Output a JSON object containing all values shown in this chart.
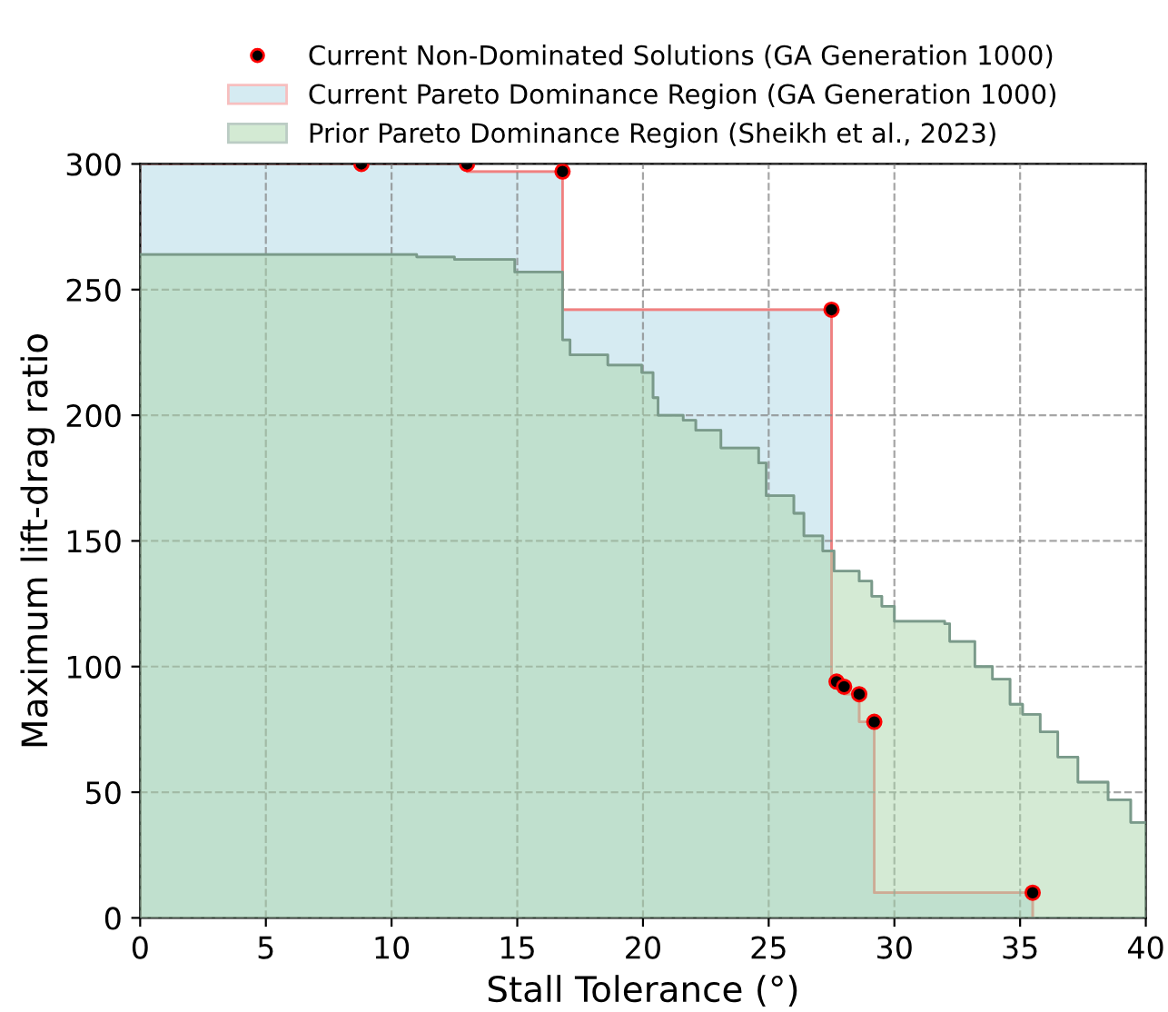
{
  "chart_data": {
    "type": "area",
    "xlabel": "Stall Tolerance (°)",
    "ylabel": "Maximum lift-drag ratio",
    "xlim": [
      0,
      40
    ],
    "ylim": [
      0,
      300
    ],
    "xticks": [
      0,
      5,
      10,
      15,
      20,
      25,
      30,
      35,
      40
    ],
    "yticks": [
      0,
      50,
      100,
      150,
      200,
      250,
      300
    ],
    "grid": true,
    "legend": "top",
    "series": [
      {
        "name": "Current Non-Dominated Solutions (GA Generation 1000)",
        "type": "scatter",
        "color": "#000000",
        "marker": "circle",
        "x": [
          8.8,
          13.0,
          16.8,
          27.5,
          27.7,
          28.0,
          28.6,
          29.2,
          35.5
        ],
        "values": [
          300,
          300,
          297,
          242,
          94,
          92,
          89,
          78,
          10
        ]
      },
      {
        "name": "Current Pareto Dominance Region (GA Generation 1000)",
        "color": "#add8e6",
        "x": [
          0,
          13.0,
          13.0,
          16.8,
          16.8,
          27.5,
          27.5,
          27.7,
          27.7,
          28.0,
          28.0,
          28.6,
          28.6,
          29.2,
          29.2,
          35.5,
          35.5
        ],
        "values": [
          300,
          300,
          297,
          297,
          242,
          242,
          94,
          94,
          92,
          92,
          89,
          89,
          78,
          78,
          10,
          10,
          0
        ]
      },
      {
        "name": "Prior Pareto Dominance Region (Sheikh et al., 2023)",
        "color": "#a9d6a9",
        "x": [
          0,
          11.0,
          11.0,
          12.5,
          12.5,
          14.9,
          14.9,
          16.8,
          16.8,
          17.1,
          17.1,
          18.6,
          18.6,
          19.95,
          19.95,
          20.4,
          20.4,
          20.6,
          20.6,
          21.6,
          21.6,
          22.1,
          22.1,
          23.1,
          23.1,
          24.6,
          24.6,
          24.9,
          24.9,
          26.0,
          26.0,
          26.4,
          26.4,
          27.15,
          27.15,
          27.6,
          27.6,
          28.6,
          28.6,
          29.1,
          29.1,
          29.5,
          29.5,
          30.0,
          30.0,
          32.0,
          32.0,
          32.2,
          32.2,
          33.2,
          33.2,
          33.9,
          33.9,
          34.6,
          34.6,
          35.1,
          35.1,
          35.8,
          35.8,
          36.5,
          36.5,
          37.3,
          37.3,
          38.5,
          38.5,
          39.4,
          39.4,
          40
        ],
        "values": [
          264,
          264,
          263,
          263,
          262,
          262,
          257,
          257,
          230,
          230,
          224,
          224,
          220,
          220,
          217,
          217,
          207,
          207,
          200,
          200,
          198,
          198,
          194,
          194,
          187,
          187,
          181,
          181,
          168,
          168,
          161,
          161,
          152,
          152,
          146,
          146,
          138,
          138,
          134,
          134,
          128,
          128,
          124,
          124,
          118,
          118,
          117,
          117,
          110,
          110,
          100,
          100,
          95,
          95,
          85,
          85,
          81,
          81,
          74,
          74,
          64,
          64,
          54,
          54,
          47,
          47,
          38,
          38
        ]
      }
    ]
  }
}
